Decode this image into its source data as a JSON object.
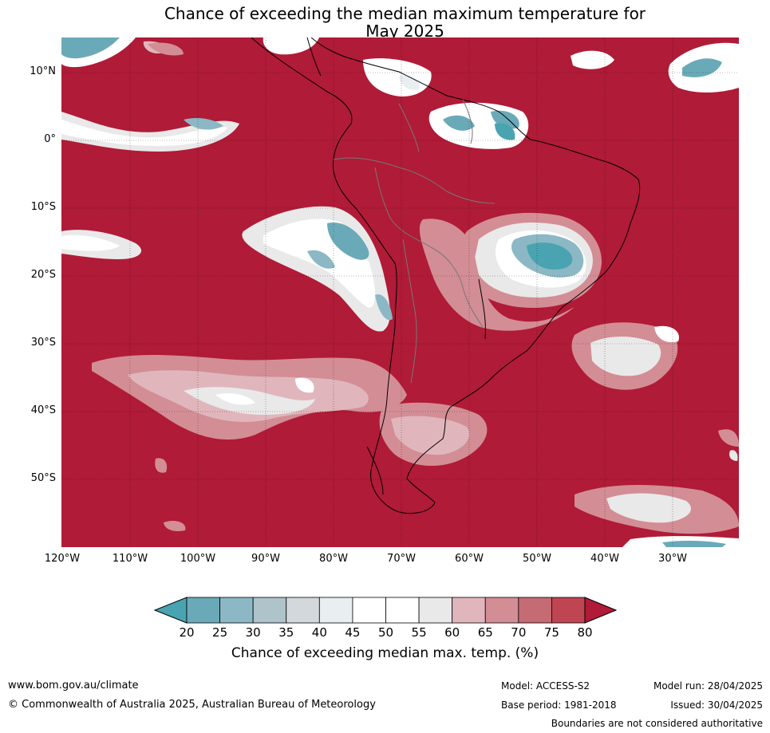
{
  "title_line1": "Chance of exceeding the median maximum temperature for",
  "title_line2": "May 2025",
  "lat_labels": [
    "10°N",
    "0°",
    "10°S",
    "20°S",
    "30°S",
    "40°S",
    "50°S"
  ],
  "lon_labels": [
    "120°W",
    "110°W",
    "100°W",
    "90°W",
    "80°W",
    "70°W",
    "60°W",
    "50°W",
    "40°W",
    "30°W"
  ],
  "colorbar": {
    "ticks": [
      "20",
      "25",
      "30",
      "35",
      "40",
      "45",
      "50",
      "55",
      "60",
      "65",
      "70",
      "75",
      "80"
    ],
    "colors": [
      "#4aa3b1",
      "#6aaab8",
      "#8bb8c4",
      "#aec3ca",
      "#d3d8dc",
      "#e9eef1",
      "#ffffff",
      "#ffffff",
      "#e9e9e9",
      "#e0b6bc",
      "#d38d95",
      "#c56b74",
      "#bf4552",
      "#b01b37"
    ],
    "label": "Chance of exceeding median max. temp. (%)"
  },
  "footer": {
    "url": "www.bom.gov.au/climate",
    "copyright": "© Commonwealth of Australia 2025, Australian Bureau of Meteorology",
    "model": "Model: ACCESS-S2",
    "base_period": "Base period: 1981-2018",
    "model_run": "Model run: 28/04/2025",
    "issued": "Issued: 30/04/2025",
    "boundaries": "Boundaries are not considered authoritative"
  }
}
